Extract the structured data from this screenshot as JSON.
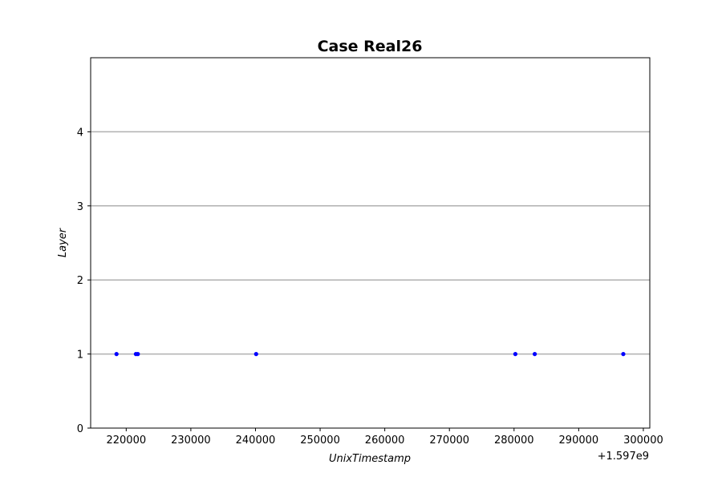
{
  "chart_data": {
    "type": "scatter",
    "title": "Case Real26",
    "xlabel": "UnixTimestamp",
    "ylabel": "Layer",
    "x_offset_label": "+1.597e9",
    "xlim": [
      1597214500,
      1597301000
    ],
    "ylim": [
      0,
      5
    ],
    "x_ticks": [
      1597220000,
      1597230000,
      1597240000,
      1597250000,
      1597260000,
      1597270000,
      1597280000,
      1597290000,
      1597300000
    ],
    "x_tick_labels": [
      "220000",
      "230000",
      "240000",
      "250000",
      "260000",
      "270000",
      "280000",
      "290000",
      "300000"
    ],
    "y_ticks": [
      0,
      1,
      2,
      3,
      4
    ],
    "y_tick_labels": [
      "0",
      "1",
      "2",
      "3",
      "4"
    ],
    "grid": "horizontal",
    "marker_color": "#0000ff",
    "points": [
      {
        "x": 1597218500,
        "y": 1
      },
      {
        "x": 1597221500,
        "y": 1
      },
      {
        "x": 1597221800,
        "y": 1
      },
      {
        "x": 1597240100,
        "y": 1
      },
      {
        "x": 1597280200,
        "y": 1
      },
      {
        "x": 1597283200,
        "y": 1
      },
      {
        "x": 1597296900,
        "y": 1
      }
    ]
  }
}
